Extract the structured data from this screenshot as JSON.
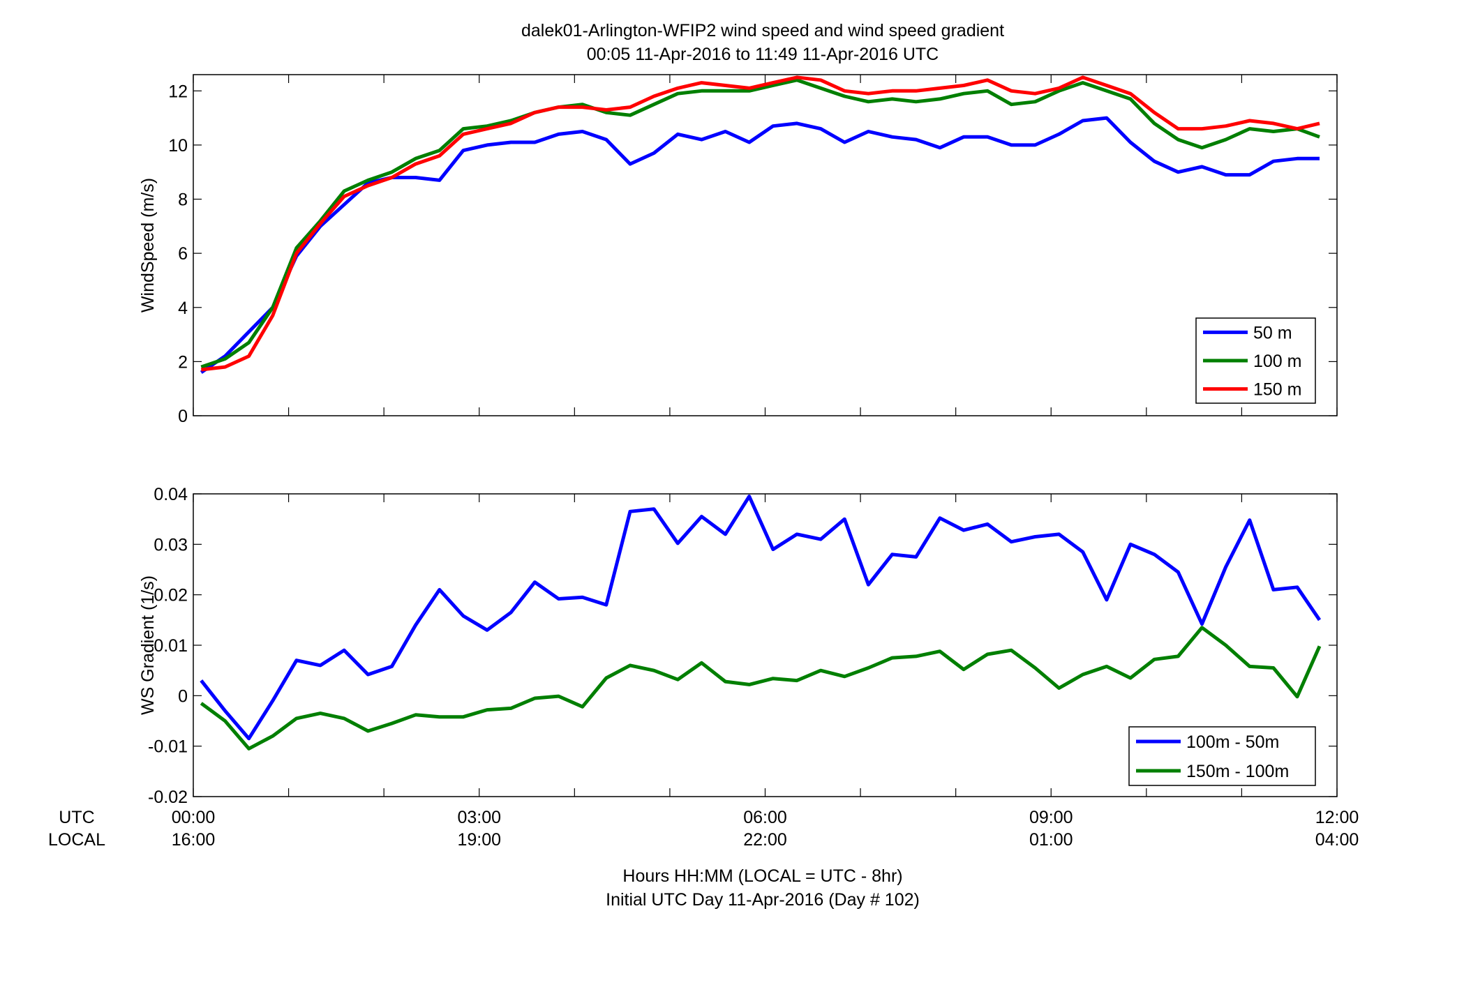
{
  "figure": {
    "title_line1": "dalek01-Arlington-WFIP2  wind speed and wind speed gradient",
    "title_line2": "00:05 11-Apr-2016 to 11:49 11-Apr-2016  UTC",
    "xlabel_line1": "Hours HH:MM  (LOCAL = UTC - 8hr)",
    "xlabel_line2": "Initial UTC Day 11-Apr-2016 (Day # 102)",
    "row_label_utc": "UTC",
    "row_label_local": "LOCAL",
    "x_ticks_utc": [
      "00:00",
      "03:00",
      "06:00",
      "09:00",
      "12:00"
    ],
    "x_ticks_local": [
      "16:00",
      "19:00",
      "22:00",
      "01:00",
      "04:00"
    ]
  },
  "chart_data": [
    {
      "type": "line",
      "ylabel": "WindSpeed (m/s)",
      "xlabel": "",
      "xlim": [
        0,
        12
      ],
      "ylim": [
        0,
        12.6
      ],
      "yticks": [
        0,
        2,
        4,
        6,
        8,
        10,
        12
      ],
      "ytick_labels": [
        "0",
        "2",
        "4",
        "6",
        "8",
        "10",
        "12"
      ],
      "grid": false,
      "legend_position": "bottom-right",
      "x_hours": [
        0.083,
        0.333,
        0.583,
        0.833,
        1.083,
        1.333,
        1.583,
        1.833,
        2.083,
        2.333,
        2.583,
        2.833,
        3.083,
        3.333,
        3.583,
        3.833,
        4.083,
        4.333,
        4.583,
        4.833,
        5.083,
        5.333,
        5.583,
        5.833,
        6.083,
        6.333,
        6.583,
        6.833,
        7.083,
        7.333,
        7.583,
        7.833,
        8.083,
        8.333,
        8.583,
        8.833,
        9.083,
        9.333,
        9.583,
        9.833,
        10.083,
        10.333,
        10.583,
        10.833,
        11.083,
        11.333,
        11.583,
        11.817
      ],
      "series": [
        {
          "name": "50 m",
          "color": "#0000ff",
          "values": [
            1.6,
            2.2,
            3.1,
            4.0,
            5.9,
            7.0,
            7.8,
            8.6,
            8.8,
            8.8,
            8.7,
            9.8,
            10.0,
            10.1,
            10.1,
            10.4,
            10.5,
            10.2,
            9.3,
            9.7,
            10.4,
            10.2,
            10.5,
            10.1,
            10.7,
            10.8,
            10.6,
            10.1,
            10.5,
            10.3,
            10.2,
            9.9,
            10.3,
            10.3,
            10.0,
            10.0,
            10.4,
            10.9,
            11.0,
            10.1,
            9.4,
            9.0,
            9.2,
            8.9,
            8.9,
            9.4,
            9.5,
            9.5
          ]
        },
        {
          "name": "100 m",
          "color": "#007f00",
          "values": [
            1.8,
            2.1,
            2.7,
            4.0,
            6.2,
            7.2,
            8.3,
            8.7,
            9.0,
            9.5,
            9.8,
            10.6,
            10.7,
            10.9,
            11.2,
            11.4,
            11.5,
            11.2,
            11.1,
            11.5,
            11.9,
            12.0,
            12.0,
            12.0,
            12.2,
            12.4,
            12.1,
            11.8,
            11.6,
            11.7,
            11.6,
            11.7,
            11.9,
            12.0,
            11.5,
            11.6,
            12.0,
            12.3,
            12.0,
            11.7,
            10.8,
            10.2,
            9.9,
            10.2,
            10.6,
            10.5,
            10.6,
            10.3
          ]
        },
        {
          "name": "150 m",
          "color": "#ff0000",
          "values": [
            1.7,
            1.8,
            2.2,
            3.7,
            6.0,
            7.1,
            8.1,
            8.5,
            8.8,
            9.3,
            9.6,
            10.4,
            10.6,
            10.8,
            11.2,
            11.4,
            11.4,
            11.3,
            11.4,
            11.8,
            12.1,
            12.3,
            12.2,
            12.1,
            12.3,
            12.5,
            12.4,
            12.0,
            11.9,
            12.0,
            12.0,
            12.1,
            12.2,
            12.4,
            12.0,
            11.9,
            12.1,
            12.5,
            12.2,
            11.9,
            11.2,
            10.6,
            10.6,
            10.7,
            10.9,
            10.8,
            10.6,
            10.8
          ]
        }
      ]
    },
    {
      "type": "line",
      "ylabel": "WS Gradient (1/s)",
      "xlabel": "",
      "xlim": [
        0,
        12
      ],
      "ylim": [
        -0.02,
        0.04
      ],
      "yticks": [
        -0.02,
        -0.01,
        0,
        0.01,
        0.02,
        0.03,
        0.04
      ],
      "ytick_labels": [
        "-0.02",
        "-0.01",
        "0",
        "0.01",
        "0.02",
        "0.03",
        "0.04"
      ],
      "grid": false,
      "legend_position": "bottom-right",
      "x_hours": [
        0.083,
        0.333,
        0.583,
        0.833,
        1.083,
        1.333,
        1.583,
        1.833,
        2.083,
        2.333,
        2.583,
        2.833,
        3.083,
        3.333,
        3.583,
        3.833,
        4.083,
        4.333,
        4.583,
        4.833,
        5.083,
        5.333,
        5.583,
        5.833,
        6.083,
        6.333,
        6.583,
        6.833,
        7.083,
        7.333,
        7.583,
        7.833,
        8.083,
        8.333,
        8.583,
        8.833,
        9.083,
        9.333,
        9.583,
        9.833,
        10.083,
        10.333,
        10.583,
        10.833,
        11.083,
        11.333,
        11.583,
        11.817
      ],
      "series": [
        {
          "name": "100m - 50m",
          "color": "#0000ff",
          "values": [
            0.003,
            -0.003,
            -0.0085,
            -0.001,
            0.007,
            0.006,
            0.009,
            0.0042,
            0.0058,
            0.014,
            0.021,
            0.0158,
            0.013,
            0.0165,
            0.0225,
            0.0192,
            0.0195,
            0.018,
            0.0365,
            0.037,
            0.0302,
            0.0355,
            0.032,
            0.0395,
            0.029,
            0.032,
            0.031,
            0.035,
            0.022,
            0.028,
            0.0275,
            0.0352,
            0.0328,
            0.034,
            0.0305,
            0.0315,
            0.032,
            0.0285,
            0.019,
            0.03,
            0.028,
            0.0245,
            0.0142,
            0.0255,
            0.0348,
            0.021,
            0.0215,
            0.015
          ]
        },
        {
          "name": "150m - 100m",
          "color": "#007f00",
          "values": [
            -0.0015,
            -0.005,
            -0.0105,
            -0.008,
            -0.0045,
            -0.0035,
            -0.0045,
            -0.007,
            -0.0055,
            -0.0038,
            -0.0042,
            -0.0042,
            -0.0028,
            -0.0025,
            -0.0005,
            -0.0001,
            -0.0022,
            0.0035,
            0.006,
            0.005,
            0.0032,
            0.0065,
            0.0028,
            0.0022,
            0.0034,
            0.003,
            0.005,
            0.0038,
            0.0055,
            0.0075,
            0.0078,
            0.0088,
            0.0052,
            0.0082,
            0.009,
            0.0055,
            0.0015,
            0.0042,
            0.0058,
            0.0035,
            0.0072,
            0.0078,
            0.0135,
            0.01,
            0.0058,
            0.0055,
            -0.0002,
            0.0098
          ]
        }
      ]
    }
  ]
}
